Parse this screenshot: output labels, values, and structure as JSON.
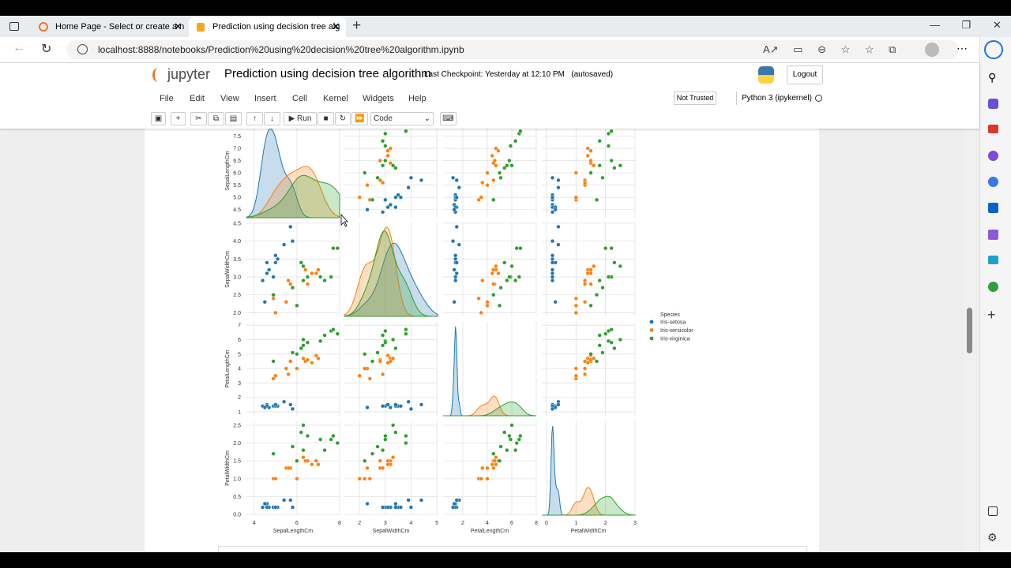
{
  "browser": {
    "tabs": [
      "Home Page - Select or create a n",
      "Prediction using decision tree alg"
    ],
    "url": "localhost:8888/notebooks/Prediction%20using%20decision%20tree%20algorithm.ipynb"
  },
  "notebook": {
    "logo": "jupyter",
    "title": "Prediction using decision tree algorithm",
    "checkpoint": "Last Checkpoint: Yesterday at 12:10 PM",
    "autosaved": "(autosaved)",
    "logout": "Logout",
    "menu": [
      "File",
      "Edit",
      "View",
      "Insert",
      "Cell",
      "Kernel",
      "Widgets",
      "Help"
    ],
    "trusted": "Not Trusted",
    "kernel": "Python 3 (ipykernel)",
    "run": "Run",
    "cell_type": "Code"
  },
  "chart_data": {
    "type": "pairplot",
    "legend_title": "Species",
    "legend": "right",
    "grid": true,
    "axes": [
      {
        "label": "SepalLengthCm",
        "xlim": [
          3.64,
          8.0
        ],
        "xticks": [
          4,
          6,
          8
        ],
        "ylim": [
          4.17,
          8.0
        ],
        "yticks": [
          4.5,
          {
            "value": 5,
            "label": "5.0"
          },
          5.5,
          {
            "value": 6,
            "label": "6.0"
          },
          6.5,
          {
            "value": 7,
            "label": "7.0"
          },
          7.5
        ]
      },
      {
        "label": "SepalWidthCm",
        "xlim": [
          1.41,
          5.03
        ],
        "xticks": [
          2,
          3,
          4,
          5
        ],
        "ylim": [
          1.9,
          4.52
        ],
        "yticks": [
          {
            "value": 2,
            "label": "2.0"
          },
          2.5,
          {
            "value": 3,
            "label": "3.0"
          },
          3.5,
          {
            "value": 4,
            "label": "4.0"
          },
          4.5
        ]
      },
      {
        "label": "PetalLengthCm",
        "xlim": [
          0.39,
          8.0
        ],
        "xticks": [
          2,
          4,
          6,
          8
        ],
        "ylim": [
          0.73,
          7.23
        ],
        "yticks": [
          1,
          2,
          3,
          4,
          5,
          6,
          7
        ]
      },
      {
        "label": "PetalWidthCm",
        "xlim": [
          -0.16,
          3.0
        ],
        "xticks": [
          0,
          1,
          2,
          3
        ],
        "ylim": [
          -0.02,
          2.61
        ],
        "yticks": [
          {
            "value": 0,
            "label": "0.0"
          },
          0.5,
          {
            "value": 1,
            "label": "1.0"
          },
          1.5,
          {
            "value": 2,
            "label": "2.0"
          },
          2.5
        ]
      }
    ],
    "series": [
      {
        "name": "Iris-setosa",
        "color": "#1f77b4",
        "values": [
          [
            5.1,
            3.5,
            1.4,
            0.2
          ],
          [
            4.9,
            3.0,
            1.4,
            0.2
          ],
          [
            4.7,
            3.2,
            1.3,
            0.2
          ],
          [
            4.6,
            3.1,
            1.5,
            0.2
          ],
          [
            5.0,
            3.6,
            1.4,
            0.2
          ],
          [
            5.4,
            3.9,
            1.7,
            0.4
          ],
          [
            4.6,
            3.4,
            1.4,
            0.3
          ],
          [
            5.0,
            3.4,
            1.5,
            0.2
          ],
          [
            4.4,
            2.9,
            1.4,
            0.2
          ],
          [
            5.7,
            4.4,
            1.5,
            0.4
          ],
          [
            5.8,
            4.0,
            1.2,
            0.2
          ],
          [
            4.5,
            2.3,
            1.3,
            0.3
          ]
        ]
      },
      {
        "name": "Iris-versicolor",
        "color": "#ff7f0e",
        "values": [
          [
            7.0,
            3.2,
            4.7,
            1.4
          ],
          [
            6.4,
            3.2,
            4.5,
            1.5
          ],
          [
            6.9,
            3.1,
            4.9,
            1.5
          ],
          [
            5.5,
            2.3,
            4.0,
            1.3
          ],
          [
            6.5,
            2.8,
            4.6,
            1.5
          ],
          [
            5.7,
            2.8,
            4.5,
            1.3
          ],
          [
            6.3,
            3.3,
            4.7,
            1.6
          ],
          [
            4.9,
            2.4,
            3.3,
            1.0
          ],
          [
            5.0,
            2.0,
            3.5,
            1.0
          ],
          [
            6.0,
            2.2,
            4.0,
            1.0
          ],
          [
            5.6,
            2.9,
            3.6,
            1.3
          ],
          [
            6.7,
            3.1,
            4.4,
            1.4
          ]
        ]
      },
      {
        "name": "Iris-virginica",
        "color": "#2ca02c",
        "values": [
          [
            6.3,
            3.3,
            6.0,
            2.5
          ],
          [
            5.8,
            2.7,
            5.1,
            1.9
          ],
          [
            7.1,
            3.0,
            5.9,
            2.1
          ],
          [
            6.3,
            2.9,
            5.6,
            1.8
          ],
          [
            6.5,
            3.0,
            5.8,
            2.2
          ],
          [
            7.6,
            3.0,
            6.6,
            2.1
          ],
          [
            4.9,
            2.5,
            4.5,
            1.7
          ],
          [
            7.3,
            2.9,
            6.3,
            1.8
          ],
          [
            7.7,
            3.8,
            6.7,
            2.2
          ],
          [
            6.0,
            2.2,
            5.0,
            1.5
          ],
          [
            7.9,
            3.8,
            6.4,
            2.0
          ],
          [
            6.2,
            3.4,
            5.4,
            2.3
          ]
        ]
      }
    ]
  }
}
